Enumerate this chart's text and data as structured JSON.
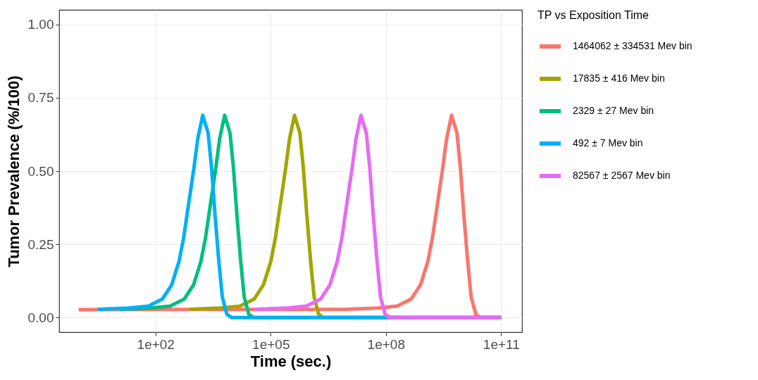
{
  "chart_data": {
    "type": "line",
    "xlabel": "Time (sec.)",
    "ylabel": "Tumor Prevalence (%/100)",
    "legend_title": "TP vs Exposition Time",
    "log": "x",
    "grid": true,
    "legend": "right",
    "line_style": "solid",
    "xlim": [
      0.31,
      350000000000.0
    ],
    "xticks": [
      {
        "value": 100,
        "label": "1e+02"
      },
      {
        "value": 100000,
        "label": "1e+05"
      },
      {
        "value": 100000000,
        "label": "1e+08"
      },
      {
        "value": 100000000000,
        "label": "1e+11"
      }
    ],
    "ylim": [
      -0.05,
      1.05
    ],
    "yticks": [
      {
        "value": 0,
        "label": "0.00"
      },
      {
        "value": 0.25,
        "label": "0.25"
      },
      {
        "value": 0.5,
        "label": "0.50"
      },
      {
        "value": 0.75,
        "label": "0.75"
      },
      {
        "value": 1,
        "label": "1.00"
      }
    ],
    "series": [
      {
        "name": "1464062 ± 334531 Mev bin",
        "color": "#f8766d",
        "x": [
          1,
          9550000.0,
          60300000.0,
          195000000.0,
          457000000.0,
          794000000.0,
          1230000000.0,
          1620000000.0,
          2000000000.0,
          2450000000.0,
          3020000000.0,
          3800000000.0,
          5130000000.0,
          7080000000.0,
          8710000000.0,
          10700000000.0,
          13500000000.0,
          16600000000.0,
          21900000000.0,
          28800000000.0,
          100000000000.0
        ],
        "values": [
          0.027,
          0.028,
          0.032,
          0.039,
          0.063,
          0.111,
          0.19,
          0.27,
          0.35,
          0.43,
          0.51,
          0.61,
          0.69,
          0.63,
          0.51,
          0.35,
          0.19,
          0.07,
          0.011,
          0,
          0
        ]
      },
      {
        "name": "17835 ± 416 Mev bin",
        "color": "#a3a500",
        "x": [
          776,
          4900,
          15800,
          37200,
          64600,
          100000,
          132000,
          162000,
          200000,
          245000,
          309000,
          417000,
          575000,
          708000,
          871000,
          1100000.0,
          1350000.0,
          1780000.0,
          2340000.0,
          100000000000.0
        ],
        "values": [
          0.028,
          0.032,
          0.039,
          0.063,
          0.111,
          0.19,
          0.27,
          0.35,
          0.43,
          0.51,
          0.61,
          0.69,
          0.63,
          0.51,
          0.35,
          0.19,
          0.07,
          0.011,
          0,
          0
        ]
      },
      {
        "name": "2329 ± 27 Mev bin",
        "color": "#00bf7d",
        "x": [
          11.7,
          74,
          240,
          562,
          977,
          1514,
          1995,
          2455,
          3020,
          3715,
          4677,
          6310,
          8710,
          10715,
          13183,
          16596,
          20417,
          26915,
          35481,
          100000000000.0
        ],
        "values": [
          0.028,
          0.032,
          0.039,
          0.063,
          0.111,
          0.19,
          0.27,
          0.35,
          0.43,
          0.51,
          0.61,
          0.69,
          0.63,
          0.51,
          0.35,
          0.19,
          0.07,
          0.011,
          0,
          0
        ]
      },
      {
        "name": "492 ± 7 Mev bin",
        "color": "#00b0f6",
        "x": [
          3.16,
          20,
          65,
          151,
          263,
          407,
          537,
          661,
          813,
          1000,
          1259,
          1698,
          2344,
          2884,
          3548,
          4467,
          5495,
          7244,
          9550,
          100000000000.0
        ],
        "values": [
          0.028,
          0.032,
          0.039,
          0.063,
          0.111,
          0.19,
          0.27,
          0.35,
          0.43,
          0.51,
          0.61,
          0.69,
          0.63,
          0.51,
          0.35,
          0.19,
          0.07,
          0.011,
          0,
          0
        ]
      },
      {
        "name": "82567 ± 2567 Mev bin",
        "color": "#e76bf3",
        "x": [
          41700,
          263000,
          851000,
          2000000.0,
          3470000.0,
          5370000.0,
          7080000.0,
          8710000.0,
          10700000.0,
          13200000.0,
          16600000.0,
          22400000.0,
          30900000.0,
          38000000.0,
          46800000.0,
          58900000.0,
          72400000.0,
          95500000.0,
          126000000.0,
          100000000000.0
        ],
        "values": [
          0.028,
          0.032,
          0.039,
          0.063,
          0.111,
          0.19,
          0.27,
          0.35,
          0.43,
          0.51,
          0.61,
          0.69,
          0.63,
          0.51,
          0.35,
          0.19,
          0.07,
          0.011,
          0,
          0
        ]
      }
    ]
  }
}
